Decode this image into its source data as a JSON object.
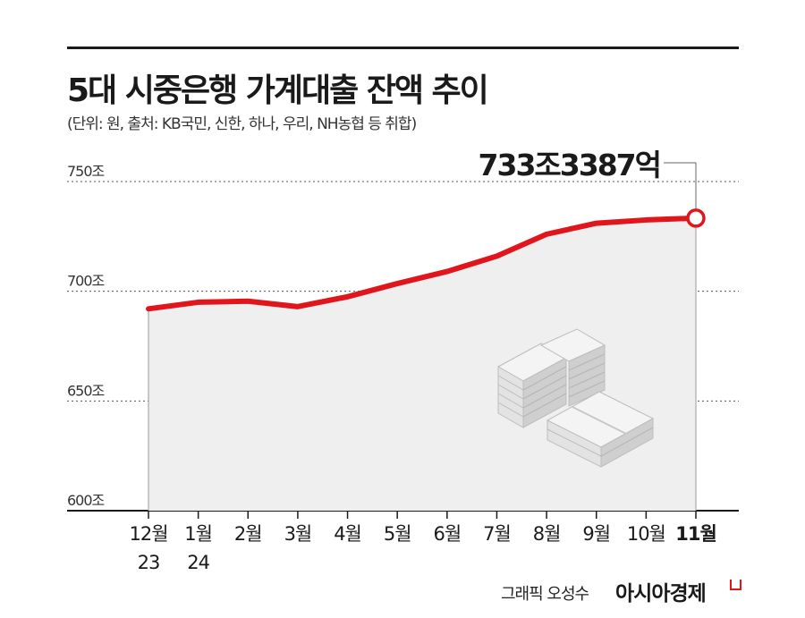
{
  "header": {
    "title": "5대 시중은행 가계대출 잔액 추이",
    "subtitle": "(단위: 원, 출처: KB국민, 신한, 하나, 우리, NH농협 등 취합)"
  },
  "footer": {
    "credit": "그래픽 오성수",
    "brand": "아시아경제"
  },
  "colors": {
    "line": "#e0161c",
    "area": "#efefef",
    "grid": "#555555",
    "text": "#1a1a1a"
  },
  "icons": [
    "money-stacks-icon",
    "brand-mark-icon"
  ],
  "chart_data": {
    "type": "line",
    "categories": [
      "12월\n23",
      "1월\n24",
      "2월",
      "3월",
      "4월",
      "5월",
      "6월",
      "7월",
      "8월",
      "9월",
      "10월",
      "11월"
    ],
    "values": [
      692.0,
      695.0,
      695.5,
      693.0,
      697.5,
      703.5,
      709.0,
      716.0,
      726.0,
      731.0,
      732.5,
      733.3387
    ],
    "ylim": [
      600,
      750
    ],
    "y_ticks": [
      600,
      650,
      700,
      750
    ],
    "y_tick_labels": [
      "600조",
      "650조",
      "700조",
      "750조"
    ],
    "area_fill": true,
    "grid": "dotted-horizontal",
    "highlight": {
      "index": 11,
      "label": "733조3387억"
    },
    "bold_categories": [
      11
    ]
  }
}
